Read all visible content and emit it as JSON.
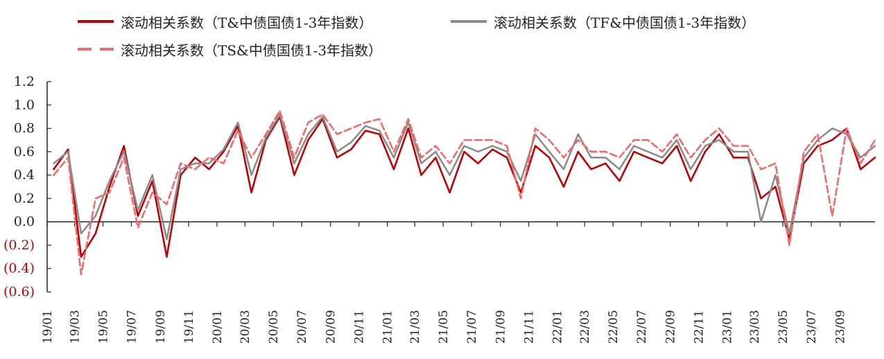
{
  "chart_data": {
    "type": "line",
    "title": "",
    "xlabel": "",
    "ylabel": "",
    "ylim": [
      -0.6,
      1.2
    ],
    "y_ticks": [
      1.2,
      1.0,
      0.8,
      0.6,
      0.4,
      0.2,
      0.0,
      -0.2,
      -0.4,
      -0.6
    ],
    "y_tick_labels": [
      "1.2",
      "1.0",
      "0.8",
      "0.6",
      "0.4",
      "0.2",
      "0.0",
      "(0.2)",
      "(0.4)",
      "(0.6)"
    ],
    "negative_label_color": "#c00000",
    "x_start": "2019-01-01",
    "x_end": "2023-11-15",
    "x_tick_labels": [
      "19/01",
      "19/03",
      "19/05",
      "19/07",
      "19/09",
      "19/11",
      "20/01",
      "20/03",
      "20/05",
      "20/07",
      "20/09",
      "20/11",
      "21/01",
      "21/03",
      "21/05",
      "21/07",
      "21/09",
      "21/11",
      "22/01",
      "22/03",
      "22/05",
      "22/07",
      "22/09",
      "22/11",
      "23/01",
      "23/03",
      "23/05",
      "23/07",
      "23/09"
    ],
    "grid": false,
    "legend_position": "top",
    "series": [
      {
        "name": "滚动相关系数（T&中债国债1-3年指数）",
        "color": "#c00000",
        "style": "solid",
        "points": [
          [
            "19/01",
            0.45
          ],
          [
            "19/02",
            0.62
          ],
          [
            "19/03",
            -0.3
          ],
          [
            "19/04",
            -0.1
          ],
          [
            "19/05",
            0.3
          ],
          [
            "19/06",
            0.65
          ],
          [
            "19/07",
            0.05
          ],
          [
            "19/08",
            0.35
          ],
          [
            "19/09",
            -0.3
          ],
          [
            "19/10",
            0.4
          ],
          [
            "19/11",
            0.55
          ],
          [
            "19/12",
            0.45
          ],
          [
            "20/01",
            0.6
          ],
          [
            "20/02",
            0.82
          ],
          [
            "20/03",
            0.25
          ],
          [
            "20/04",
            0.7
          ],
          [
            "20/05",
            0.9
          ],
          [
            "20/06",
            0.4
          ],
          [
            "20/07",
            0.7
          ],
          [
            "20/08",
            0.88
          ],
          [
            "20/09",
            0.55
          ],
          [
            "20/10",
            0.62
          ],
          [
            "20/11",
            0.78
          ],
          [
            "20/12",
            0.75
          ],
          [
            "21/01",
            0.45
          ],
          [
            "21/02",
            0.8
          ],
          [
            "21/03",
            0.4
          ],
          [
            "21/04",
            0.55
          ],
          [
            "21/05",
            0.25
          ],
          [
            "21/06",
            0.6
          ],
          [
            "21/07",
            0.5
          ],
          [
            "21/08",
            0.62
          ],
          [
            "21/09",
            0.55
          ],
          [
            "21/10",
            0.25
          ],
          [
            "21/11",
            0.65
          ],
          [
            "21/12",
            0.55
          ],
          [
            "22/01",
            0.3
          ],
          [
            "22/02",
            0.6
          ],
          [
            "22/03",
            0.45
          ],
          [
            "22/04",
            0.5
          ],
          [
            "22/05",
            0.35
          ],
          [
            "22/06",
            0.6
          ],
          [
            "22/07",
            0.55
          ],
          [
            "22/08",
            0.5
          ],
          [
            "22/09",
            0.65
          ],
          [
            "22/10",
            0.35
          ],
          [
            "22/11",
            0.6
          ],
          [
            "22/12",
            0.75
          ],
          [
            "23/01",
            0.55
          ],
          [
            "23/02",
            0.55
          ],
          [
            "23/03",
            0.2
          ],
          [
            "23/04",
            0.3
          ],
          [
            "23/05",
            -0.15
          ],
          [
            "23/06",
            0.5
          ],
          [
            "23/07",
            0.65
          ],
          [
            "23/08",
            0.7
          ],
          [
            "23/09",
            0.8
          ],
          [
            "23/10",
            0.45
          ],
          [
            "23/11",
            0.55
          ]
        ]
      },
      {
        "name": "滚动相关系数（TF&中债国债1-3年指数）",
        "color": "#8c8c8c",
        "style": "solid",
        "points": [
          [
            "19/01",
            0.5
          ],
          [
            "19/02",
            0.6
          ],
          [
            "19/03",
            -0.1
          ],
          [
            "19/04",
            0.05
          ],
          [
            "19/05",
            0.35
          ],
          [
            "19/06",
            0.6
          ],
          [
            "19/07",
            0.1
          ],
          [
            "19/08",
            0.4
          ],
          [
            "19/09",
            -0.15
          ],
          [
            "19/10",
            0.45
          ],
          [
            "19/11",
            0.5
          ],
          [
            "19/12",
            0.5
          ],
          [
            "20/01",
            0.62
          ],
          [
            "20/02",
            0.85
          ],
          [
            "20/03",
            0.4
          ],
          [
            "20/04",
            0.72
          ],
          [
            "20/05",
            0.92
          ],
          [
            "20/06",
            0.5
          ],
          [
            "20/07",
            0.75
          ],
          [
            "20/08",
            0.9
          ],
          [
            "20/09",
            0.6
          ],
          [
            "20/10",
            0.68
          ],
          [
            "20/11",
            0.82
          ],
          [
            "20/12",
            0.78
          ],
          [
            "21/01",
            0.55
          ],
          [
            "21/02",
            0.85
          ],
          [
            "21/03",
            0.5
          ],
          [
            "21/04",
            0.6
          ],
          [
            "21/05",
            0.4
          ],
          [
            "21/06",
            0.65
          ],
          [
            "21/07",
            0.6
          ],
          [
            "21/08",
            0.65
          ],
          [
            "21/09",
            0.6
          ],
          [
            "21/10",
            0.35
          ],
          [
            "21/11",
            0.75
          ],
          [
            "21/12",
            0.6
          ],
          [
            "22/01",
            0.45
          ],
          [
            "22/02",
            0.75
          ],
          [
            "22/03",
            0.55
          ],
          [
            "22/04",
            0.55
          ],
          [
            "22/05",
            0.45
          ],
          [
            "22/06",
            0.65
          ],
          [
            "22/07",
            0.6
          ],
          [
            "22/08",
            0.55
          ],
          [
            "22/09",
            0.7
          ],
          [
            "22/10",
            0.45
          ],
          [
            "22/11",
            0.65
          ],
          [
            "22/12",
            0.7
          ],
          [
            "23/01",
            0.6
          ],
          [
            "23/02",
            0.6
          ],
          [
            "23/03",
            0.0
          ],
          [
            "23/04",
            0.4
          ],
          [
            "23/05",
            -0.1
          ],
          [
            "23/06",
            0.55
          ],
          [
            "23/07",
            0.7
          ],
          [
            "23/08",
            0.8
          ],
          [
            "23/09",
            0.75
          ],
          [
            "23/10",
            0.55
          ],
          [
            "23/11",
            0.65
          ]
        ]
      },
      {
        "name": "滚动相关系数（TS&中债国债1-3年指数）",
        "color": "#f26a6a",
        "style": "dashed",
        "points": [
          [
            "19/01",
            0.4
          ],
          [
            "19/02",
            0.55
          ],
          [
            "19/03",
            -0.45
          ],
          [
            "19/04",
            0.2
          ],
          [
            "19/05",
            0.25
          ],
          [
            "19/06",
            0.55
          ],
          [
            "19/07",
            -0.05
          ],
          [
            "19/08",
            0.25
          ],
          [
            "19/09",
            0.15
          ],
          [
            "19/10",
            0.5
          ],
          [
            "19/11",
            0.45
          ],
          [
            "19/12",
            0.55
          ],
          [
            "20/01",
            0.5
          ],
          [
            "20/02",
            0.78
          ],
          [
            "20/03",
            0.55
          ],
          [
            "20/04",
            0.75
          ],
          [
            "20/05",
            0.95
          ],
          [
            "20/06",
            0.55
          ],
          [
            "20/07",
            0.85
          ],
          [
            "20/08",
            0.92
          ],
          [
            "20/09",
            0.75
          ],
          [
            "20/10",
            0.8
          ],
          [
            "20/11",
            0.85
          ],
          [
            "20/12",
            0.88
          ],
          [
            "21/01",
            0.6
          ],
          [
            "21/02",
            0.88
          ],
          [
            "21/03",
            0.55
          ],
          [
            "21/04",
            0.65
          ],
          [
            "21/05",
            0.5
          ],
          [
            "21/06",
            0.7
          ],
          [
            "21/07",
            0.7
          ],
          [
            "21/08",
            0.7
          ],
          [
            "21/09",
            0.65
          ],
          [
            "21/10",
            0.2
          ],
          [
            "21/11",
            0.8
          ],
          [
            "21/12",
            0.7
          ],
          [
            "22/01",
            0.55
          ],
          [
            "22/02",
            0.7
          ],
          [
            "22/03",
            0.6
          ],
          [
            "22/04",
            0.6
          ],
          [
            "22/05",
            0.55
          ],
          [
            "22/06",
            0.7
          ],
          [
            "22/07",
            0.7
          ],
          [
            "22/08",
            0.6
          ],
          [
            "22/09",
            0.75
          ],
          [
            "22/10",
            0.55
          ],
          [
            "22/11",
            0.7
          ],
          [
            "22/12",
            0.8
          ],
          [
            "23/01",
            0.65
          ],
          [
            "23/02",
            0.65
          ],
          [
            "23/03",
            0.45
          ],
          [
            "23/04",
            0.5
          ],
          [
            "23/05",
            -0.2
          ],
          [
            "23/06",
            0.6
          ],
          [
            "23/07",
            0.75
          ],
          [
            "23/08",
            0.05
          ],
          [
            "23/09",
            0.8
          ],
          [
            "23/10",
            0.5
          ],
          [
            "23/11",
            0.7
          ]
        ]
      }
    ]
  }
}
